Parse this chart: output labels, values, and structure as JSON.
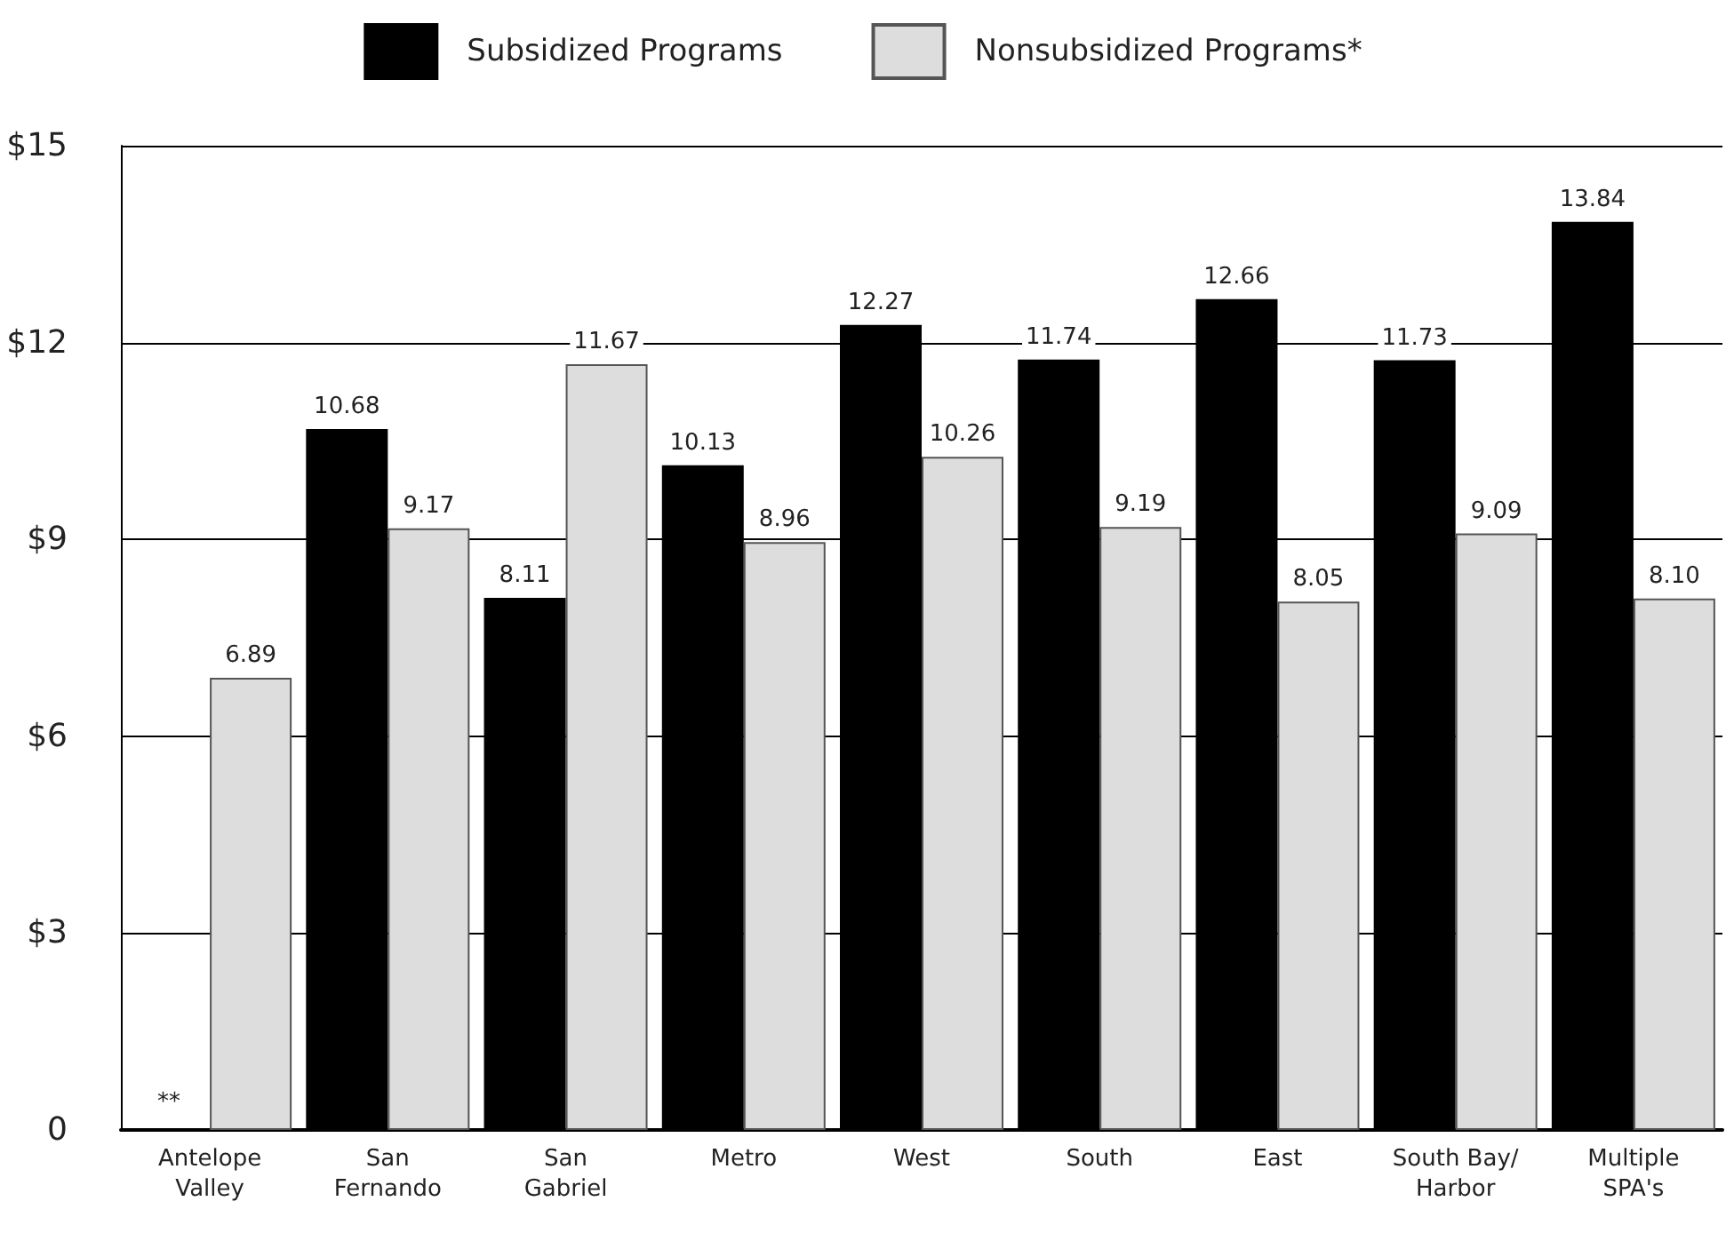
{
  "chart_data": {
    "type": "bar",
    "categories": [
      "Antelope\nValley",
      "San\nFernando",
      "San\nGabriel",
      "Metro",
      "West",
      "South",
      "East",
      "South Bay/\nHarbor",
      "Multiple\nSPA's"
    ],
    "series": [
      {
        "name": "Subsidized Programs",
        "color": "#000000",
        "values": [
          null,
          10.68,
          8.11,
          10.13,
          12.27,
          11.74,
          12.66,
          11.73,
          13.84
        ],
        "value_labels": [
          null,
          "10.68",
          "8.11",
          "10.13",
          "12.27",
          "11.74",
          "12.66",
          "11.73",
          "13.84"
        ]
      },
      {
        "name": "Nonsubsidized Programs*",
        "color": "#dddddd",
        "values": [
          6.89,
          9.17,
          11.67,
          8.96,
          10.26,
          9.19,
          8.05,
          9.09,
          8.1
        ],
        "value_labels": [
          "6.89",
          "9.17",
          "11.67",
          "8.96",
          "10.26",
          "9.19",
          "8.05",
          "9.09",
          "8.10"
        ]
      }
    ],
    "ylim": [
      0,
      15
    ],
    "yticks": [
      {
        "value": 0,
        "label": "0"
      },
      {
        "value": 3,
        "label": "$3"
      },
      {
        "value": 6,
        "label": "$6"
      },
      {
        "value": 9,
        "label": "$9"
      },
      {
        "value": 12,
        "label": "$12"
      },
      {
        "value": 15,
        "label": "$15"
      }
    ],
    "grid": "y",
    "legend": "top",
    "annotations": [
      {
        "text": "**",
        "x": "Antelope\nValley",
        "y": 0
      }
    ]
  }
}
